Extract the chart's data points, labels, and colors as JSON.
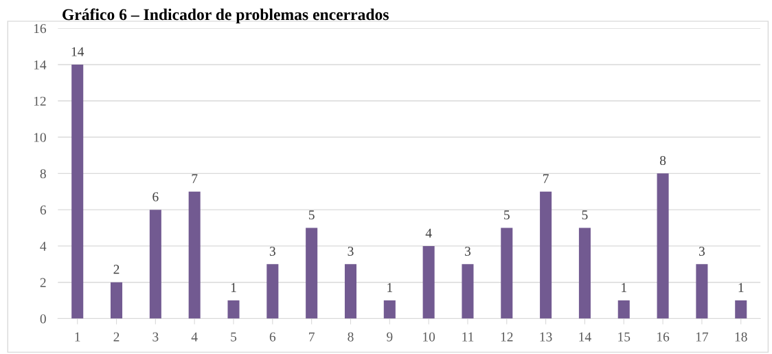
{
  "chart_data": {
    "type": "bar",
    "title": "Gráfico 6 – Indicador de problemas encerrados",
    "categories": [
      "1",
      "2",
      "3",
      "4",
      "5",
      "6",
      "7",
      "8",
      "9",
      "10",
      "11",
      "12",
      "13",
      "14",
      "15",
      "16",
      "17",
      "18"
    ],
    "values": [
      14,
      2,
      6,
      7,
      1,
      3,
      5,
      3,
      1,
      4,
      3,
      5,
      7,
      5,
      1,
      8,
      3,
      1
    ],
    "color": "#725a91",
    "ylim": [
      0,
      16
    ],
    "yticks": [
      0,
      2,
      4,
      6,
      8,
      10,
      12,
      14,
      16
    ],
    "grid": "y",
    "data_labels": true
  }
}
